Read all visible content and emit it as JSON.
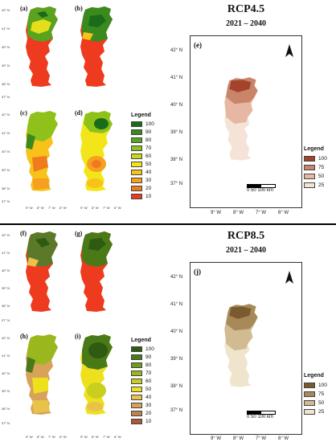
{
  "top": {
    "scenario": "RCP4.5",
    "period": "2021 – 2040",
    "panels": [
      "(a)",
      "(b)",
      "(c)",
      "(d)"
    ],
    "big_label": "(e)",
    "legend_small_title": "Legend",
    "legend_small": [
      {
        "label": "100",
        "color": "#1a6b1a"
      },
      {
        "label": "90",
        "color": "#3a8a1e"
      },
      {
        "label": "80",
        "color": "#5aa31e"
      },
      {
        "label": "70",
        "color": "#8ec21a"
      },
      {
        "label": "60",
        "color": "#c8d81a"
      },
      {
        "label": "50",
        "color": "#f2e61a"
      },
      {
        "label": "40",
        "color": "#f7c21a"
      },
      {
        "label": "30",
        "color": "#f5a01e"
      },
      {
        "label": "20",
        "color": "#f07a1e"
      },
      {
        "label": "10",
        "color": "#ee3a1e"
      }
    ],
    "legend_big_title": "Legend",
    "legend_big": [
      {
        "label": "100",
        "color": "#a4432c"
      },
      {
        "label": "75",
        "color": "#c9846a"
      },
      {
        "label": "50",
        "color": "#e6b8a3"
      },
      {
        "label": "25",
        "color": "#f6e3d7"
      }
    ]
  },
  "bottom": {
    "scenario": "RCP8.5",
    "period": "2021 – 2040",
    "panels": [
      "(f)",
      "(g)",
      "(h)",
      "(i)"
    ],
    "big_label": "(j)",
    "legend_small_title": "Legend",
    "legend_small": [
      {
        "label": "100",
        "color": "#2e5a12"
      },
      {
        "label": "90",
        "color": "#4a7a18"
      },
      {
        "label": "80",
        "color": "#6e9a1e"
      },
      {
        "label": "70",
        "color": "#9ab81e"
      },
      {
        "label": "60",
        "color": "#c8cf1e"
      },
      {
        "label": "50",
        "color": "#efe01e"
      },
      {
        "label": "40",
        "color": "#e8c24a"
      },
      {
        "label": "30",
        "color": "#d8a25a"
      },
      {
        "label": "20",
        "color": "#c08050"
      },
      {
        "label": "10",
        "color": "#a85a3a"
      }
    ],
    "legend_big_title": "Legend",
    "legend_big": [
      {
        "label": "100",
        "color": "#7a5a30"
      },
      {
        "label": "75",
        "color": "#a88a5a"
      },
      {
        "label": "50",
        "color": "#d0bb92"
      },
      {
        "label": "25",
        "color": "#efe5cc"
      }
    ]
  },
  "axes": {
    "lat_labels": [
      "42° N",
      "41° N",
      "40° N",
      "39° N",
      "38° N",
      "37° N"
    ],
    "lon_labels": [
      "9° W",
      "8° W",
      "7° W",
      "6° W"
    ]
  },
  "scalebar": {
    "values": "0  50  100",
    "unit": "km"
  },
  "north": "N"
}
